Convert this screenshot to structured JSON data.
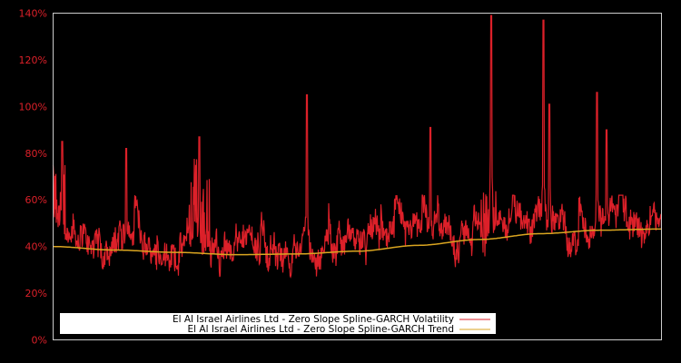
{
  "chart_data": {
    "type": "line",
    "title": "",
    "xlabel": "",
    "ylabel": "",
    "ylim": [
      0,
      140
    ],
    "y_ticks": [
      "0%",
      "20%",
      "40%",
      "60%",
      "80%",
      "100%",
      "120%",
      "140%"
    ],
    "y_tick_values": [
      0,
      20,
      40,
      60,
      80,
      100,
      120,
      140
    ],
    "x_ticks": [],
    "grid": false,
    "legend_position": "bottom-left inside",
    "colors": {
      "background": "#000000",
      "axis": "#cccccc",
      "tick_label": "#dc2029",
      "volatility": "#dc2029",
      "trend": "#daa520",
      "legend_bg": "#ffffff"
    },
    "series": [
      {
        "name": "El Al Israel Airlines Ltd - Zero Slope Spline-GARCH Volatility",
        "color": "#dc2029",
        "peaks": [
          {
            "x_frac": 0.015,
            "value": 85
          },
          {
            "x_frac": 0.12,
            "value": 82
          },
          {
            "x_frac": 0.24,
            "value": 87
          },
          {
            "x_frac": 0.417,
            "value": 105
          },
          {
            "x_frac": 0.62,
            "value": 91
          },
          {
            "x_frac": 0.72,
            "value": 139
          },
          {
            "x_frac": 0.806,
            "value": 137
          },
          {
            "x_frac": 0.816,
            "value": 101
          },
          {
            "x_frac": 0.894,
            "value": 106
          },
          {
            "x_frac": 0.91,
            "value": 90
          }
        ],
        "baseline_range": [
          27,
          60
        ]
      },
      {
        "name": "El Al Israel Airlines Ltd - Zero Slope Spline-GARCH Trend",
        "color": "#daa520",
        "x_frac": [
          0.0,
          0.1,
          0.2,
          0.3,
          0.4,
          0.5,
          0.6,
          0.7,
          0.8,
          0.9,
          1.0
        ],
        "values": [
          40,
          38.5,
          37.5,
          36.5,
          36.8,
          38,
          40.5,
          43,
          45.5,
          47,
          47.5
        ]
      }
    ]
  },
  "legend": {
    "items": [
      {
        "label": "El Al Israel Airlines Ltd - Zero Slope Spline-GARCH Volatility",
        "color": "#dc2029"
      },
      {
        "label": "El Al Israel Airlines Ltd - Zero Slope Spline-GARCH Trend",
        "color": "#daa520"
      }
    ]
  }
}
